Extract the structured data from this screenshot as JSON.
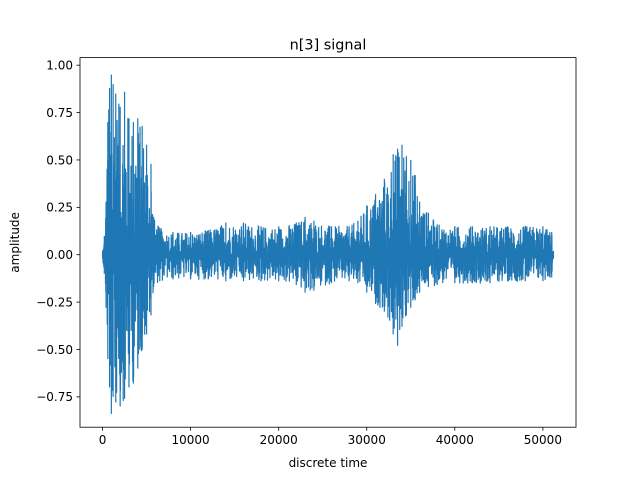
{
  "chart_data": {
    "type": "line",
    "title": "n[3] signal",
    "xlabel": "discrete time",
    "ylabel": "amplitude",
    "xlim": [
      -2560,
      53760
    ],
    "ylim": [
      -0.91,
      1.04
    ],
    "xticks": [
      0,
      10000,
      20000,
      30000,
      40000,
      50000
    ],
    "xtick_labels": [
      "0",
      "10000",
      "20000",
      "30000",
      "40000",
      "50000"
    ],
    "yticks": [
      -0.75,
      -0.5,
      -0.25,
      0.0,
      0.25,
      0.5,
      0.75,
      1.0
    ],
    "ytick_labels": [
      "−0.75",
      "−0.50",
      "−0.25",
      "0.00",
      "0.25",
      "0.50",
      "0.75",
      "1.00"
    ],
    "grid": false,
    "series": [
      {
        "color": "#1f77b4",
        "n_samples": 51200,
        "envelope": {
          "x": [
            0,
            200,
            400,
            600,
            800,
            1000,
            1200,
            1500,
            2000,
            2500,
            3000,
            3500,
            4000,
            4500,
            5000,
            5500,
            5800,
            6500,
            8000,
            10000,
            12000,
            14000,
            16000,
            18000,
            20000,
            22000,
            23000,
            24000,
            26000,
            28000,
            29000,
            30000,
            31000,
            32000,
            33000,
            33500,
            34000,
            34500,
            35000,
            35500,
            36000,
            37000,
            38000,
            40000,
            42000,
            44000,
            46000,
            48000,
            50000,
            51000,
            51200
          ],
          "upper": [
            0.02,
            0.1,
            0.28,
            0.7,
            0.88,
            0.95,
            0.9,
            0.85,
            0.78,
            0.86,
            0.72,
            0.7,
            0.72,
            0.68,
            0.58,
            0.48,
            0.2,
            0.14,
            0.12,
            0.12,
            0.13,
            0.17,
            0.17,
            0.15,
            0.15,
            0.17,
            0.2,
            0.18,
            0.15,
            0.15,
            0.18,
            0.26,
            0.32,
            0.4,
            0.53,
            0.56,
            0.58,
            0.52,
            0.5,
            0.42,
            0.28,
            0.22,
            0.16,
            0.15,
            0.15,
            0.15,
            0.15,
            0.15,
            0.15,
            0.12,
            0.02
          ],
          "lower": [
            -0.02,
            -0.1,
            -0.28,
            -0.55,
            -0.7,
            -0.84,
            -0.75,
            -0.78,
            -0.8,
            -0.76,
            -0.7,
            -0.68,
            -0.6,
            -0.5,
            -0.42,
            -0.32,
            -0.17,
            -0.14,
            -0.13,
            -0.13,
            -0.13,
            -0.14,
            -0.14,
            -0.14,
            -0.14,
            -0.16,
            -0.2,
            -0.19,
            -0.15,
            -0.14,
            -0.15,
            -0.2,
            -0.26,
            -0.3,
            -0.42,
            -0.48,
            -0.38,
            -0.32,
            -0.28,
            -0.24,
            -0.2,
            -0.17,
            -0.16,
            -0.15,
            -0.15,
            -0.15,
            -0.14,
            -0.14,
            -0.14,
            -0.12,
            -0.02
          ]
        }
      }
    ]
  }
}
